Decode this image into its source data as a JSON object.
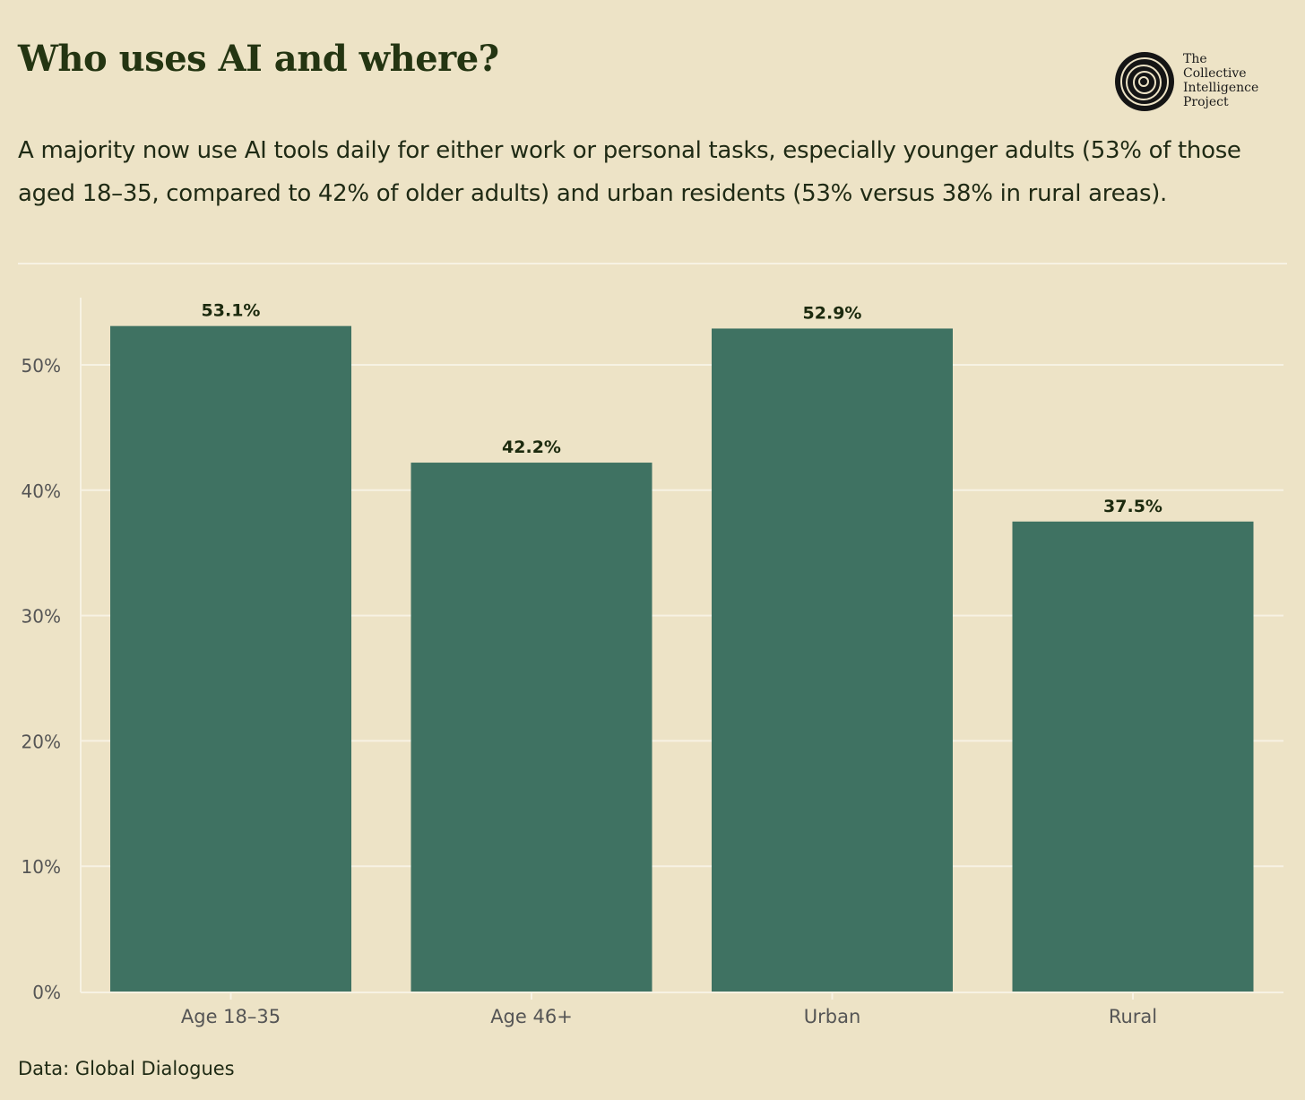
{
  "header": {
    "title": "Who uses AI and where?",
    "subtitle": "A majority now use AI tools daily for either work or personal tasks, especially younger adults (53% of those aged 18–35, compared to 42% of older adults) and urban residents (53% versus 38% in rural areas)."
  },
  "logo": {
    "icon": "tree-ring-icon",
    "lines": [
      "The",
      "Collective",
      "Intelligence",
      "Project"
    ]
  },
  "source": "Data: Global Dialogues",
  "colors": {
    "background": "#ede3c6",
    "bar": "#3f7262",
    "gridline": "#f7f2e3",
    "title": "#243512"
  },
  "chart_data": {
    "type": "bar",
    "title": "Who uses AI and where?",
    "xlabel": "",
    "ylabel": "",
    "categories": [
      "Age 18–35",
      "Age 46+",
      "Urban",
      "Rural"
    ],
    "values": [
      53.1,
      42.2,
      52.9,
      37.5
    ],
    "data_labels": [
      "53.1%",
      "42.2%",
      "52.9%",
      "37.5%"
    ],
    "ylim": [
      0,
      55
    ],
    "yticks": [
      0,
      10,
      20,
      30,
      40,
      50
    ],
    "ytick_labels": [
      "0%",
      "10%",
      "20%",
      "30%",
      "40%",
      "50%"
    ],
    "grid": true,
    "legend": "none"
  }
}
